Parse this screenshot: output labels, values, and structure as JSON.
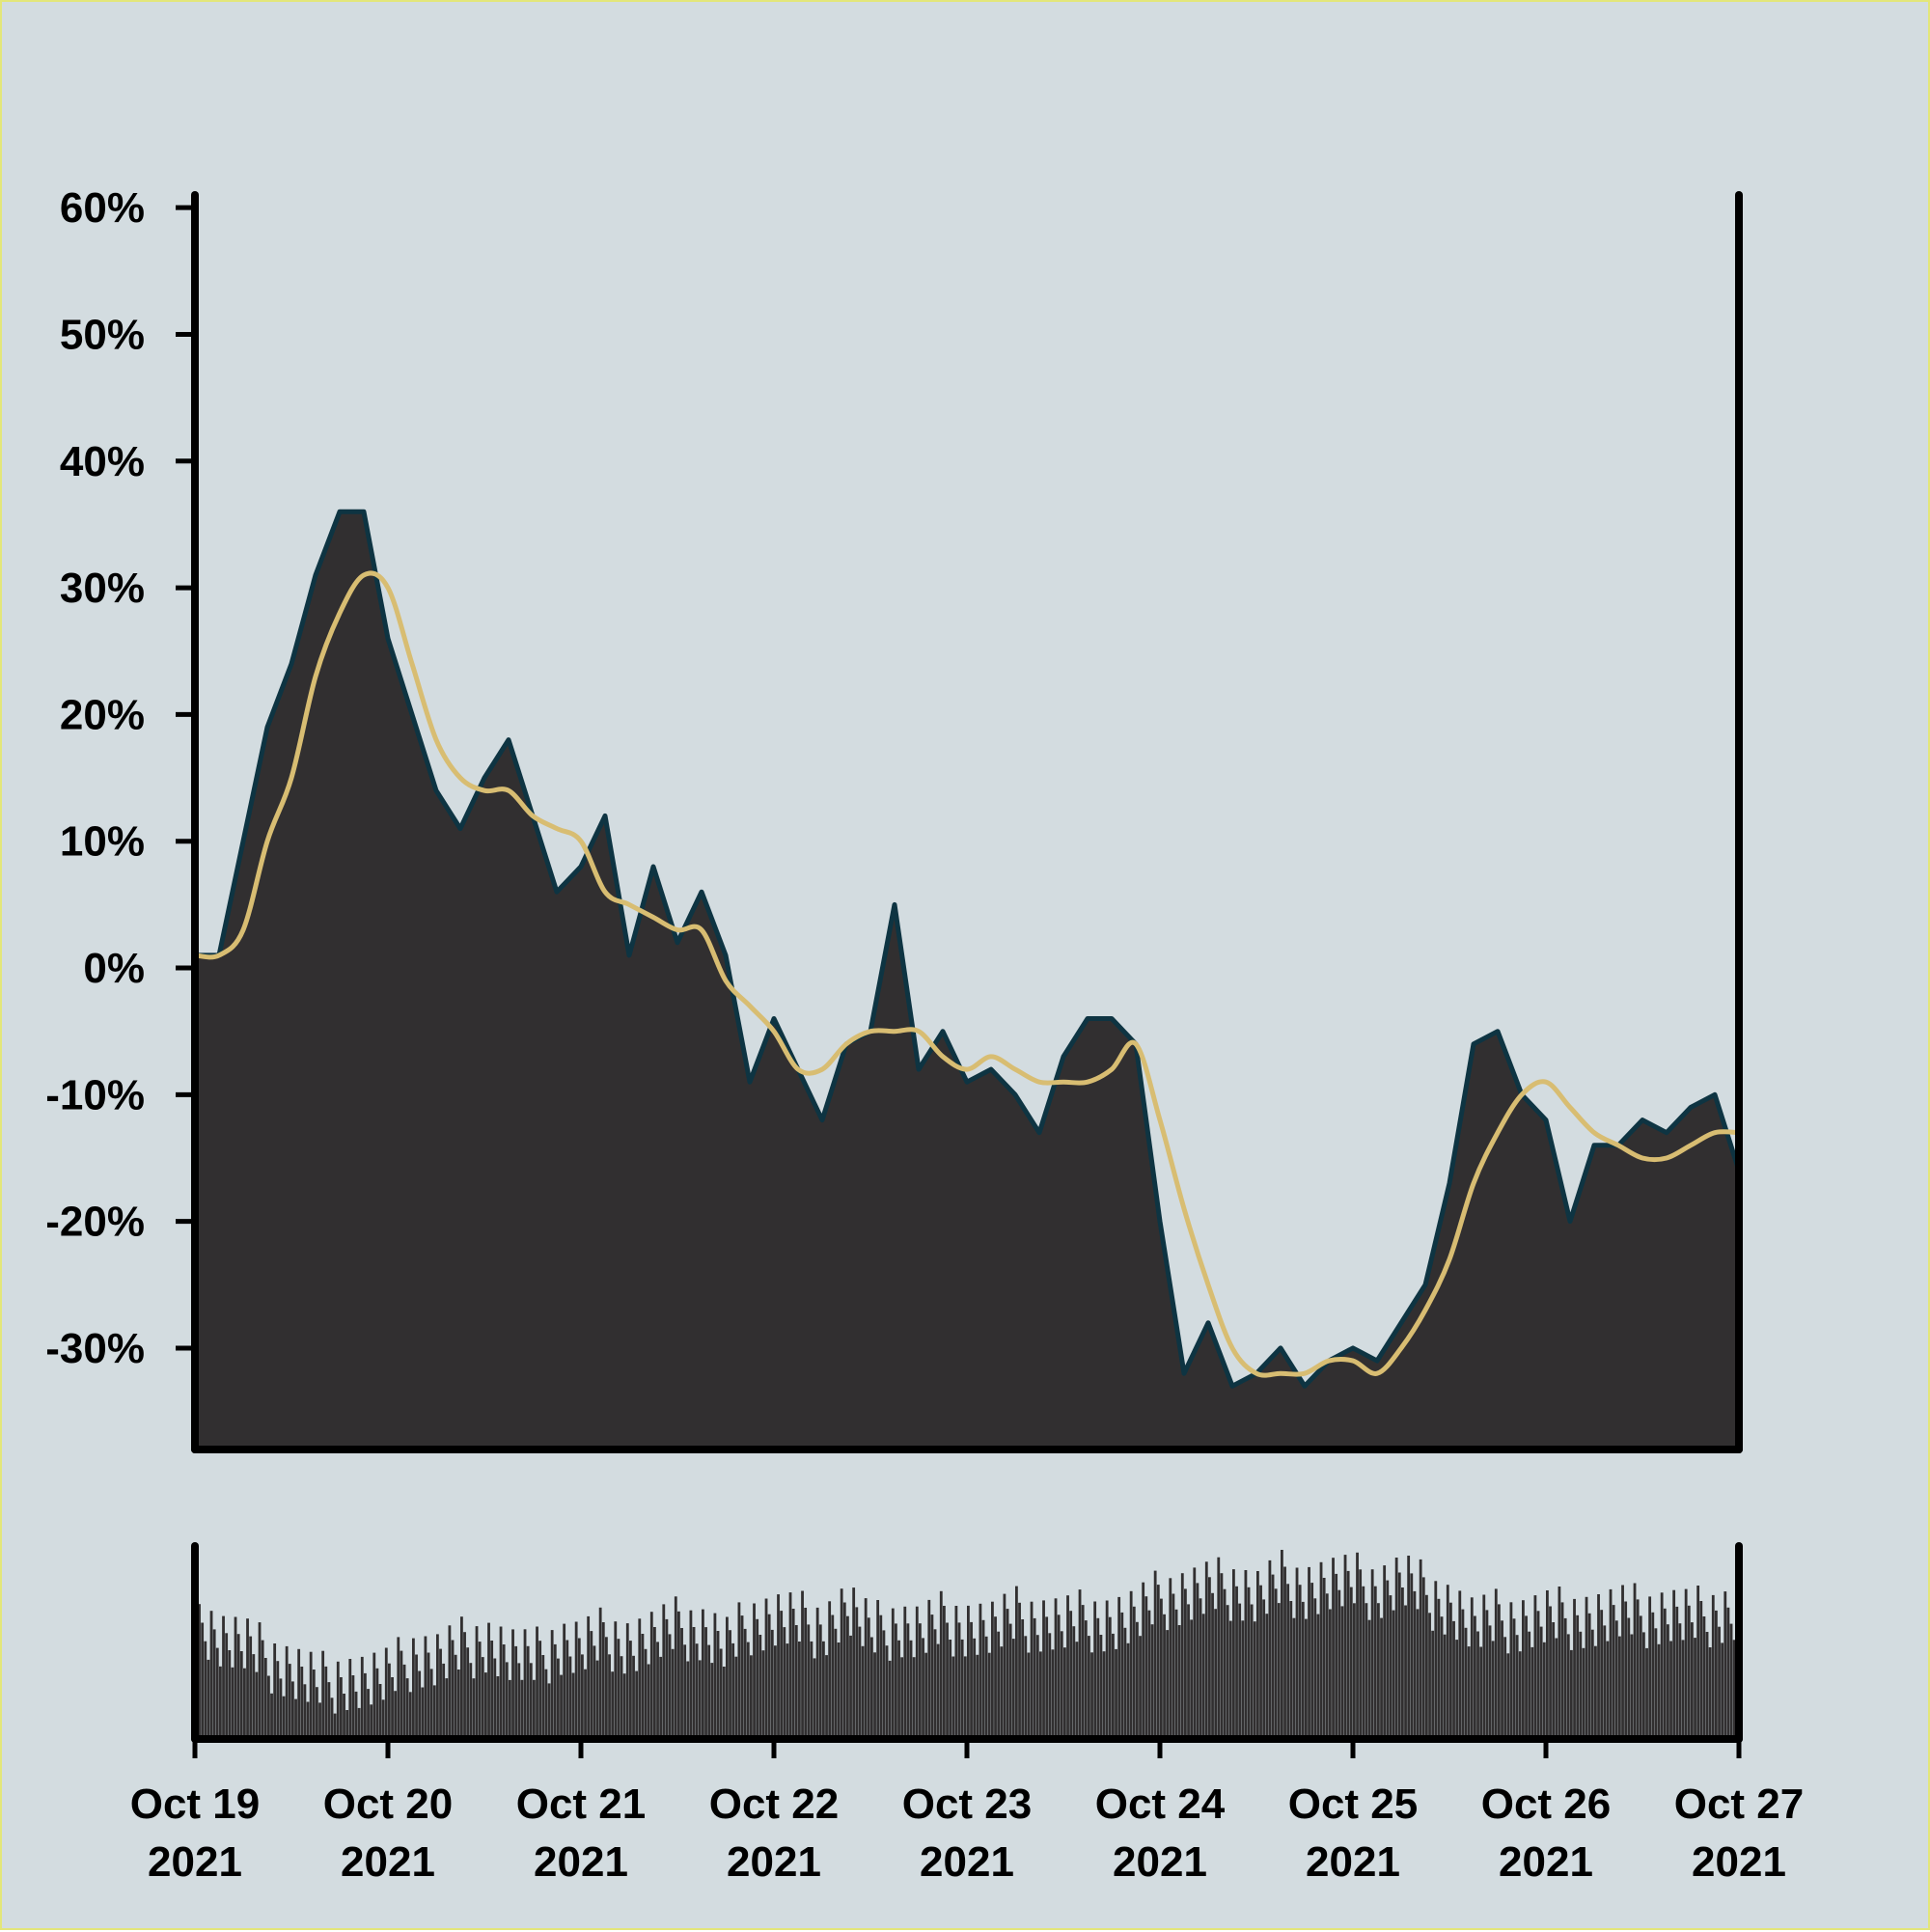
{
  "chart_data": {
    "type": "area",
    "title": "",
    "xlabel": "",
    "ylabel": "",
    "colors": {
      "background": "#d3dce0",
      "area_fill": "#312f30",
      "area_edge": "#0e3442",
      "average_line": "#d8bd72",
      "axis": "#000000",
      "border": "#e3e67a"
    },
    "y_axis": {
      "ylim": [
        -38,
        61
      ],
      "ticks": [
        60,
        50,
        40,
        30,
        20,
        10,
        0,
        -10,
        -20,
        -30
      ],
      "tick_labels": [
        "60%",
        "50%",
        "40%",
        "30%",
        "20%",
        "10%",
        "0%",
        "-10%",
        "-20%",
        "-30%"
      ]
    },
    "x_axis": {
      "xlim": [
        "2021-10-19",
        "2021-10-27"
      ],
      "ticks": [
        "2021-10-19",
        "2021-10-20",
        "2021-10-21",
        "2021-10-22",
        "2021-10-23",
        "2021-10-24",
        "2021-10-25",
        "2021-10-26",
        "2021-10-27"
      ],
      "tick_labels": [
        [
          "Oct 19",
          "2021"
        ],
        [
          "Oct 20",
          "2021"
        ],
        [
          "Oct 21",
          "2021"
        ],
        [
          "Oct 22",
          "2021"
        ],
        [
          "Oct 23",
          "2021"
        ],
        [
          "Oct 24",
          "2021"
        ],
        [
          "Oct 25",
          "2021"
        ],
        [
          "Oct 26",
          "2021"
        ],
        [
          "Oct 27",
          "2021"
        ]
      ]
    },
    "series": [
      {
        "kind": "area",
        "x": [
          "2021-10-19 00:00",
          "2021-10-19 03:00",
          "2021-10-19 06:00",
          "2021-10-19 09:00",
          "2021-10-19 12:00",
          "2021-10-19 15:00",
          "2021-10-19 18:00",
          "2021-10-19 21:00",
          "2021-10-20 00:00",
          "2021-10-20 03:00",
          "2021-10-20 06:00",
          "2021-10-20 09:00",
          "2021-10-20 12:00",
          "2021-10-20 15:00",
          "2021-10-20 18:00",
          "2021-10-20 21:00",
          "2021-10-21 00:00",
          "2021-10-21 03:00",
          "2021-10-21 06:00",
          "2021-10-21 09:00",
          "2021-10-21 12:00",
          "2021-10-21 15:00",
          "2021-10-21 18:00",
          "2021-10-21 21:00",
          "2021-10-22 00:00",
          "2021-10-22 03:00",
          "2021-10-22 06:00",
          "2021-10-22 09:00",
          "2021-10-22 12:00",
          "2021-10-22 15:00",
          "2021-10-22 18:00",
          "2021-10-22 21:00",
          "2021-10-23 00:00",
          "2021-10-23 03:00",
          "2021-10-23 06:00",
          "2021-10-23 09:00",
          "2021-10-23 12:00",
          "2021-10-23 15:00",
          "2021-10-23 18:00",
          "2021-10-23 21:00",
          "2021-10-24 00:00",
          "2021-10-24 03:00",
          "2021-10-24 06:00",
          "2021-10-24 09:00",
          "2021-10-24 12:00",
          "2021-10-24 15:00",
          "2021-10-24 18:00",
          "2021-10-24 21:00",
          "2021-10-25 00:00",
          "2021-10-25 03:00",
          "2021-10-25 06:00",
          "2021-10-25 09:00",
          "2021-10-25 12:00",
          "2021-10-25 15:00",
          "2021-10-25 18:00",
          "2021-10-25 21:00",
          "2021-10-26 00:00",
          "2021-10-26 03:00",
          "2021-10-26 06:00",
          "2021-10-26 09:00",
          "2021-10-26 12:00",
          "2021-10-26 15:00",
          "2021-10-26 18:00",
          "2021-10-26 21:00",
          "2021-10-27 00:00"
        ],
        "values": [
          1,
          1,
          10,
          19,
          24,
          31,
          36,
          36,
          26,
          20,
          14,
          11,
          15,
          18,
          12,
          6,
          8,
          12,
          1,
          8,
          2,
          6,
          1,
          -9,
          -4,
          -8,
          -12,
          -6,
          -5,
          5,
          -8,
          -5,
          -9,
          -8,
          -10,
          -13,
          -7,
          -4,
          -4,
          -6,
          -20,
          -32,
          -28,
          -33,
          -32,
          -30,
          -33,
          -31,
          -30,
          -31,
          -28,
          -25,
          -17,
          -6,
          -5,
          -10,
          -12,
          -20,
          -14,
          -14,
          -12,
          -13,
          -11,
          -10,
          -16
        ]
      },
      {
        "kind": "line",
        "x": [
          "2021-10-19 00:00",
          "2021-10-19 03:00",
          "2021-10-19 06:00",
          "2021-10-19 09:00",
          "2021-10-19 12:00",
          "2021-10-19 15:00",
          "2021-10-19 18:00",
          "2021-10-19 21:00",
          "2021-10-20 00:00",
          "2021-10-20 03:00",
          "2021-10-20 06:00",
          "2021-10-20 09:00",
          "2021-10-20 12:00",
          "2021-10-20 15:00",
          "2021-10-20 18:00",
          "2021-10-20 21:00",
          "2021-10-21 00:00",
          "2021-10-21 03:00",
          "2021-10-21 06:00",
          "2021-10-21 09:00",
          "2021-10-21 12:00",
          "2021-10-21 15:00",
          "2021-10-21 18:00",
          "2021-10-21 21:00",
          "2021-10-22 00:00",
          "2021-10-22 03:00",
          "2021-10-22 06:00",
          "2021-10-22 09:00",
          "2021-10-22 12:00",
          "2021-10-22 15:00",
          "2021-10-22 18:00",
          "2021-10-22 21:00",
          "2021-10-23 00:00",
          "2021-10-23 03:00",
          "2021-10-23 06:00",
          "2021-10-23 09:00",
          "2021-10-23 12:00",
          "2021-10-23 15:00",
          "2021-10-23 18:00",
          "2021-10-23 21:00",
          "2021-10-24 00:00",
          "2021-10-24 03:00",
          "2021-10-24 06:00",
          "2021-10-24 09:00",
          "2021-10-24 12:00",
          "2021-10-24 15:00",
          "2021-10-24 18:00",
          "2021-10-24 21:00",
          "2021-10-25 00:00",
          "2021-10-25 03:00",
          "2021-10-25 06:00",
          "2021-10-25 09:00",
          "2021-10-25 12:00",
          "2021-10-25 15:00",
          "2021-10-25 18:00",
          "2021-10-25 21:00",
          "2021-10-26 00:00",
          "2021-10-26 03:00",
          "2021-10-26 06:00",
          "2021-10-26 09:00",
          "2021-10-26 12:00",
          "2021-10-26 15:00",
          "2021-10-26 18:00",
          "2021-10-26 21:00",
          "2021-10-27 00:00"
        ],
        "values": [
          1,
          1,
          3,
          10,
          15,
          23,
          28,
          31,
          30,
          24,
          18,
          15,
          14,
          14,
          12,
          11,
          10,
          6,
          5,
          4,
          3,
          3,
          -1,
          -3,
          -5,
          -8,
          -8,
          -6,
          -5,
          -5,
          -5,
          -7,
          -8,
          -7,
          -8,
          -9,
          -9,
          -9,
          -8,
          -6,
          -12,
          -19,
          -25,
          -30,
          -32,
          -32,
          -32,
          -31,
          -31,
          -32,
          -30,
          -27,
          -23,
          -17,
          -13,
          -10,
          -9,
          -11,
          -13,
          -14,
          -15,
          -15,
          -14,
          -13,
          -13
        ]
      },
      {
        "kind": "bar",
        "note_values": "relative bar heights (0-1) of the lower panel",
        "values": [
          0.62,
          0.52,
          0.48,
          0.41,
          0.35,
          0.29,
          0.31,
          0.3,
          0.32,
          0.42,
          0.41,
          0.47,
          0.5,
          0.43,
          0.4,
          0.48,
          0.47,
          0.53,
          0.48,
          0.52,
          0.57,
          0.55,
          0.48,
          0.6,
          0.62,
          0.61,
          0.58,
          0.68,
          0.54,
          0.58,
          0.55,
          0.61,
          0.58,
          0.57,
          0.62,
          0.6,
          0.59,
          0.62,
          0.6,
          0.63,
          0.72,
          0.74,
          0.77,
          0.78,
          0.74,
          0.82,
          0.78,
          0.8,
          0.8,
          0.77,
          0.82,
          0.75,
          0.68,
          0.58,
          0.61,
          0.6,
          0.62,
          0.63,
          0.62,
          0.64,
          0.63,
          0.64,
          0.62,
          0.65,
          0.65
        ]
      }
    ]
  }
}
